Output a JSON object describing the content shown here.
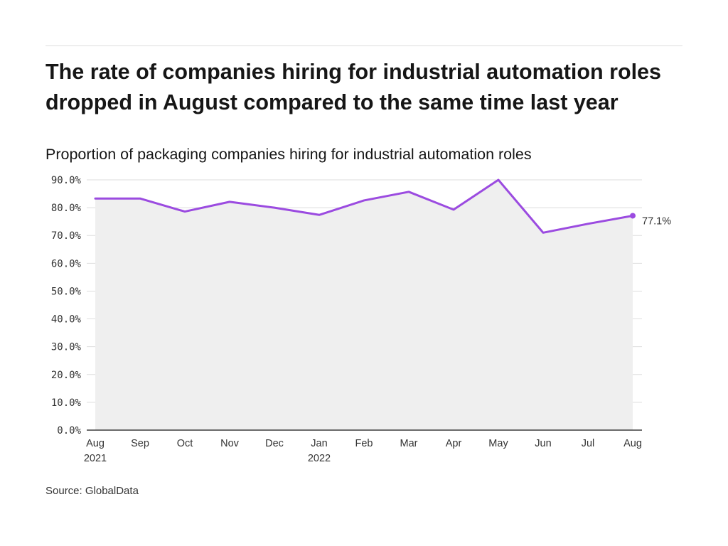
{
  "header": {
    "title": "The rate of companies hiring for industrial automation roles dropped in August compared to the same time last year",
    "subtitle": "Proportion of packaging companies hiring for industrial automation roles"
  },
  "footer": {
    "source": "Source: GlobalData"
  },
  "chart_data": {
    "type": "area",
    "x": [
      "Aug 2021",
      "Sep 2021",
      "Oct 2021",
      "Nov 2021",
      "Dec 2021",
      "Jan 2022",
      "Feb 2022",
      "Mar 2022",
      "Apr 2022",
      "May 2022",
      "Jun 2022",
      "Jul 2022",
      "Aug 2022"
    ],
    "x_tick_labels": [
      [
        "Aug",
        "2021"
      ],
      [
        "Sep"
      ],
      [
        "Oct"
      ],
      [
        "Nov"
      ],
      [
        "Dec"
      ],
      [
        "Jan",
        "2022"
      ],
      [
        "Feb"
      ],
      [
        "Mar"
      ],
      [
        "Apr"
      ],
      [
        "May"
      ],
      [
        "Jun"
      ],
      [
        "Jul"
      ],
      [
        "Aug"
      ]
    ],
    "series": [
      {
        "values": [
          83.3,
          83.3,
          78.6,
          82.1,
          80.0,
          77.4,
          82.6,
          85.7,
          79.3,
          90.0,
          71.0,
          74.2,
          77.1
        ]
      }
    ],
    "end_label": "77.1%",
    "ylim": [
      0,
      90
    ],
    "y_ticks": [
      0,
      10,
      20,
      30,
      40,
      50,
      60,
      70,
      80,
      90
    ],
    "y_tick_labels": [
      "0.0%",
      "10.0%",
      "20.0%",
      "30.0%",
      "40.0%",
      "50.0%",
      "60.0%",
      "70.0%",
      "80.0%",
      "90.0%"
    ],
    "xlabel": "",
    "ylabel": "",
    "grid": true,
    "colors": {
      "line": "#9b4be0",
      "area": "#efefef",
      "grid": "#dedede",
      "axis": "#161616"
    }
  }
}
